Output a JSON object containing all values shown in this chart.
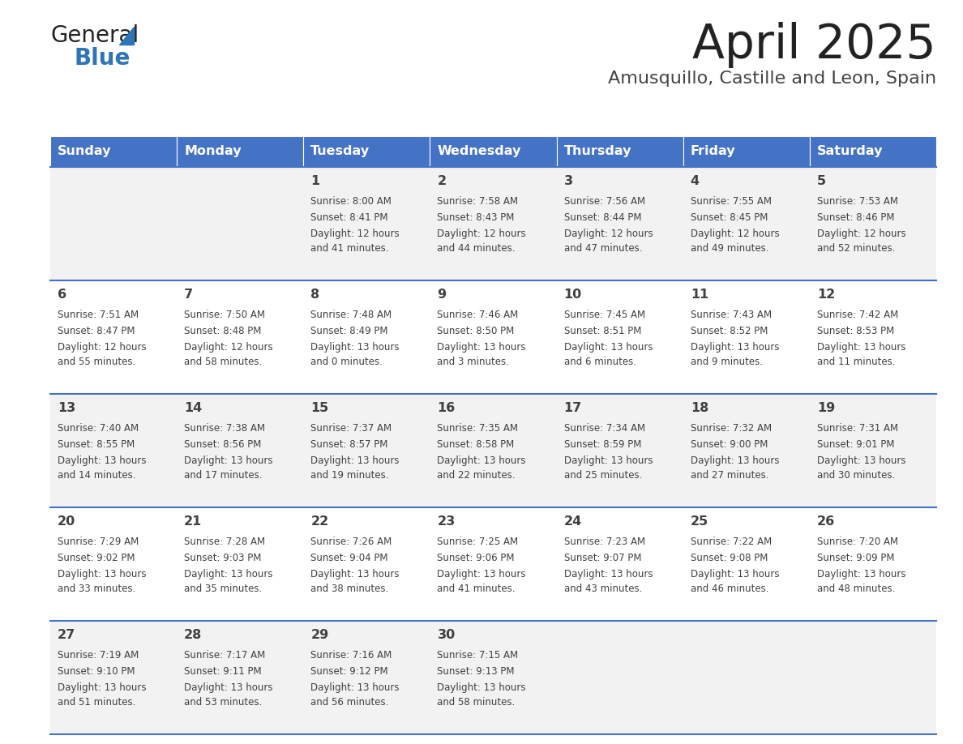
{
  "title": "April 2025",
  "subtitle": "Amusquillo, Castille and Leon, Spain",
  "days_of_week": [
    "Sunday",
    "Monday",
    "Tuesday",
    "Wednesday",
    "Thursday",
    "Friday",
    "Saturday"
  ],
  "header_bg": "#4472C4",
  "header_text_color": "#FFFFFF",
  "row_bg_even": "#FFFFFF",
  "row_bg_odd": "#F2F2F2",
  "cell_text_color": "#404040",
  "divider_color": "#4472C4",
  "title_color": "#222222",
  "subtitle_color": "#444444",
  "logo_general_color": "#222222",
  "logo_blue_color": "#2E75B6",
  "calendar_data": [
    [
      null,
      null,
      {
        "day": 1,
        "sunrise": "8:00 AM",
        "sunset": "8:41 PM",
        "daylight": "12 hours and 41 minutes."
      },
      {
        "day": 2,
        "sunrise": "7:58 AM",
        "sunset": "8:43 PM",
        "daylight": "12 hours and 44 minutes."
      },
      {
        "day": 3,
        "sunrise": "7:56 AM",
        "sunset": "8:44 PM",
        "daylight": "12 hours and 47 minutes."
      },
      {
        "day": 4,
        "sunrise": "7:55 AM",
        "sunset": "8:45 PM",
        "daylight": "12 hours and 49 minutes."
      },
      {
        "day": 5,
        "sunrise": "7:53 AM",
        "sunset": "8:46 PM",
        "daylight": "12 hours and 52 minutes."
      }
    ],
    [
      {
        "day": 6,
        "sunrise": "7:51 AM",
        "sunset": "8:47 PM",
        "daylight": "12 hours and 55 minutes."
      },
      {
        "day": 7,
        "sunrise": "7:50 AM",
        "sunset": "8:48 PM",
        "daylight": "12 hours and 58 minutes."
      },
      {
        "day": 8,
        "sunrise": "7:48 AM",
        "sunset": "8:49 PM",
        "daylight": "13 hours and 0 minutes."
      },
      {
        "day": 9,
        "sunrise": "7:46 AM",
        "sunset": "8:50 PM",
        "daylight": "13 hours and 3 minutes."
      },
      {
        "day": 10,
        "sunrise": "7:45 AM",
        "sunset": "8:51 PM",
        "daylight": "13 hours and 6 minutes."
      },
      {
        "day": 11,
        "sunrise": "7:43 AM",
        "sunset": "8:52 PM",
        "daylight": "13 hours and 9 minutes."
      },
      {
        "day": 12,
        "sunrise": "7:42 AM",
        "sunset": "8:53 PM",
        "daylight": "13 hours and 11 minutes."
      }
    ],
    [
      {
        "day": 13,
        "sunrise": "7:40 AM",
        "sunset": "8:55 PM",
        "daylight": "13 hours and 14 minutes."
      },
      {
        "day": 14,
        "sunrise": "7:38 AM",
        "sunset": "8:56 PM",
        "daylight": "13 hours and 17 minutes."
      },
      {
        "day": 15,
        "sunrise": "7:37 AM",
        "sunset": "8:57 PM",
        "daylight": "13 hours and 19 minutes."
      },
      {
        "day": 16,
        "sunrise": "7:35 AM",
        "sunset": "8:58 PM",
        "daylight": "13 hours and 22 minutes."
      },
      {
        "day": 17,
        "sunrise": "7:34 AM",
        "sunset": "8:59 PM",
        "daylight": "13 hours and 25 minutes."
      },
      {
        "day": 18,
        "sunrise": "7:32 AM",
        "sunset": "9:00 PM",
        "daylight": "13 hours and 27 minutes."
      },
      {
        "day": 19,
        "sunrise": "7:31 AM",
        "sunset": "9:01 PM",
        "daylight": "13 hours and 30 minutes."
      }
    ],
    [
      {
        "day": 20,
        "sunrise": "7:29 AM",
        "sunset": "9:02 PM",
        "daylight": "13 hours and 33 minutes."
      },
      {
        "day": 21,
        "sunrise": "7:28 AM",
        "sunset": "9:03 PM",
        "daylight": "13 hours and 35 minutes."
      },
      {
        "day": 22,
        "sunrise": "7:26 AM",
        "sunset": "9:04 PM",
        "daylight": "13 hours and 38 minutes."
      },
      {
        "day": 23,
        "sunrise": "7:25 AM",
        "sunset": "9:06 PM",
        "daylight": "13 hours and 41 minutes."
      },
      {
        "day": 24,
        "sunrise": "7:23 AM",
        "sunset": "9:07 PM",
        "daylight": "13 hours and 43 minutes."
      },
      {
        "day": 25,
        "sunrise": "7:22 AM",
        "sunset": "9:08 PM",
        "daylight": "13 hours and 46 minutes."
      },
      {
        "day": 26,
        "sunrise": "7:20 AM",
        "sunset": "9:09 PM",
        "daylight": "13 hours and 48 minutes."
      }
    ],
    [
      {
        "day": 27,
        "sunrise": "7:19 AM",
        "sunset": "9:10 PM",
        "daylight": "13 hours and 51 minutes."
      },
      {
        "day": 28,
        "sunrise": "7:17 AM",
        "sunset": "9:11 PM",
        "daylight": "13 hours and 53 minutes."
      },
      {
        "day": 29,
        "sunrise": "7:16 AM",
        "sunset": "9:12 PM",
        "daylight": "13 hours and 56 minutes."
      },
      {
        "day": 30,
        "sunrise": "7:15 AM",
        "sunset": "9:13 PM",
        "daylight": "13 hours and 58 minutes."
      },
      null,
      null,
      null
    ]
  ]
}
